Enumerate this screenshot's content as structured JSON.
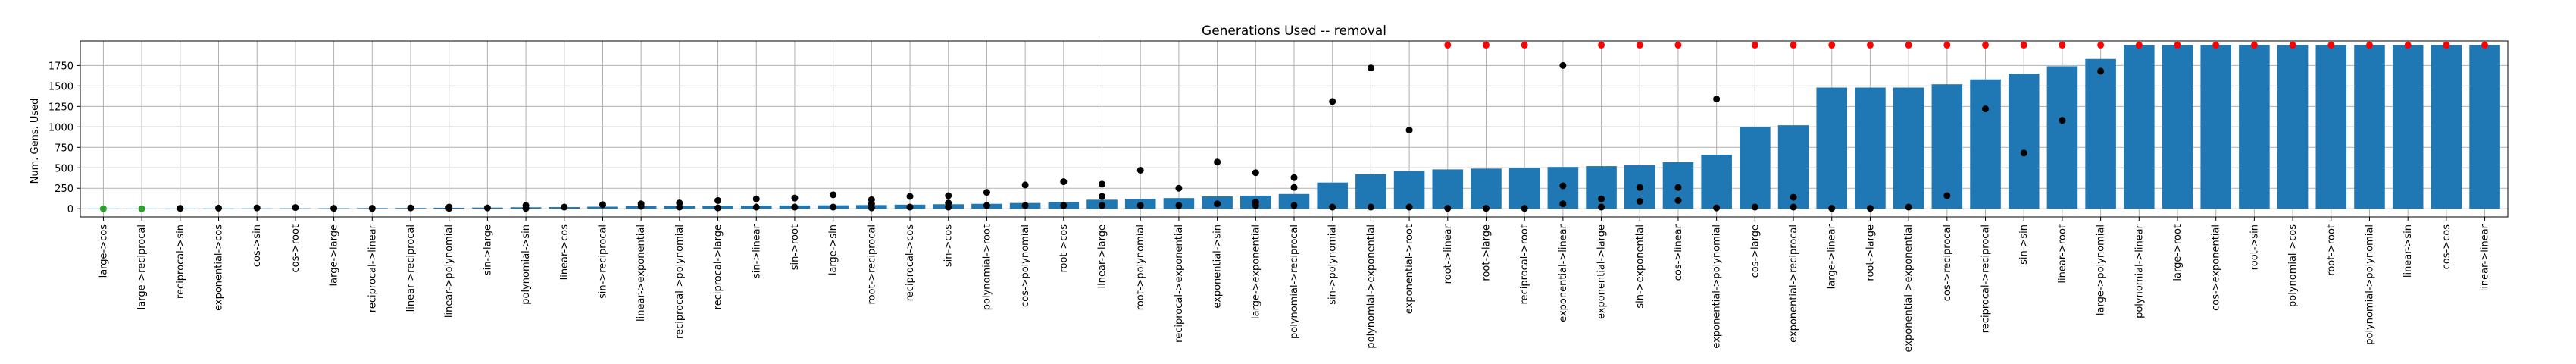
{
  "chart_data": {
    "type": "bar",
    "title": "Generations Used -- removal",
    "xlabel": "",
    "ylabel": "Num. Gens. Used",
    "ylim": [
      -100,
      2050
    ],
    "yticks": [
      0,
      250,
      500,
      750,
      1000,
      1250,
      1500,
      1750
    ],
    "grid": true,
    "colors": {
      "bar": "#1f77b4",
      "marker_black": "#000000",
      "marker_red": "#ff0000",
      "marker_green": "#2ca02c",
      "grid": "#b0b0b0"
    },
    "categories": [
      "large->cos",
      "large->reciprocal",
      "reciprocal->sin",
      "exponential->cos",
      "cos->sin",
      "cos->root",
      "large->large",
      "reciprocal->linear",
      "linear->reciprocal",
      "linear->polynomial",
      "sin->large",
      "polynomial->sin",
      "linear->cos",
      "sin->reciprocal",
      "linear->exponential",
      "reciprocal->polynomial",
      "reciprocal->large",
      "sin->linear",
      "sin->root",
      "large->sin",
      "root->reciprocal",
      "reciprocal->cos",
      "sin->cos",
      "polynomial->root",
      "cos->polynomial",
      "root->cos",
      "linear->large",
      "root->polynomial",
      "reciprocal->exponential",
      "exponential->sin",
      "large->exponential",
      "polynomial->reciprocal",
      "sin->polynomial",
      "polynomial->exponential",
      "exponential->root",
      "root->linear",
      "root->large",
      "reciprocal->root",
      "exponential->linear",
      "exponential->large",
      "sin->exponential",
      "cos->linear",
      "exponential->polynomial",
      "cos->large",
      "exponential->reciprocal",
      "large->linear",
      "root->large",
      "exponential->exponential",
      "cos->reciprocal",
      "reciprocal->reciprocal",
      "sin->sin",
      "linear->root",
      "large->polynomial",
      "polynomial->linear",
      "large->root",
      "cos->exponential",
      "root->sin",
      "polynomial->cos",
      "root->root",
      "polynomial->polynomial",
      "linear->sin",
      "cos->cos",
      "linear->linear"
    ],
    "values": [
      0,
      0,
      2,
      3,
      4,
      5,
      6,
      8,
      9,
      12,
      14,
      18,
      20,
      25,
      30,
      32,
      35,
      38,
      40,
      42,
      45,
      50,
      55,
      60,
      70,
      80,
      110,
      120,
      130,
      150,
      160,
      180,
      320,
      420,
      460,
      480,
      490,
      500,
      510,
      520,
      530,
      570,
      660,
      1000,
      1020,
      1480,
      1480,
      1480,
      1520,
      1580,
      1650,
      1740,
      1830,
      2000,
      2000,
      2000,
      2000,
      2000,
      2000,
      2000,
      2000,
      2000,
      2000
    ],
    "markers": [
      {
        "color": "green",
        "y": [
          0,
          0,
          0,
          0,
          0,
          0,
          0,
          0,
          0,
          0,
          0,
          0,
          0,
          50,
          0,
          0,
          0,
          0,
          0,
          0,
          0,
          0,
          0,
          0,
          0,
          0,
          0,
          0,
          0,
          0,
          0,
          0,
          0,
          0,
          0,
          0,
          0,
          0,
          0,
          0,
          0,
          0,
          0,
          0,
          0,
          0,
          0,
          0,
          0,
          0,
          0,
          0,
          0,
          0,
          0,
          0,
          0,
          0,
          0,
          0,
          0,
          0,
          0
        ],
        "only": [
          0,
          1,
          13
        ]
      },
      {
        "color": "black",
        "points": [
          [
            2,
            5
          ],
          [
            3,
            8
          ],
          [
            4,
            10
          ],
          [
            5,
            15
          ],
          [
            6,
            5
          ],
          [
            7,
            5
          ],
          [
            8,
            10
          ],
          [
            9,
            20
          ],
          [
            9,
            5
          ],
          [
            10,
            10
          ],
          [
            11,
            40
          ],
          [
            11,
            5
          ],
          [
            12,
            20
          ],
          [
            13,
            50
          ],
          [
            14,
            30
          ],
          [
            14,
            60
          ],
          [
            15,
            20
          ],
          [
            15,
            70
          ],
          [
            16,
            100
          ],
          [
            16,
            10
          ],
          [
            17,
            120
          ],
          [
            17,
            20
          ],
          [
            18,
            130
          ],
          [
            18,
            20
          ],
          [
            19,
            170
          ],
          [
            19,
            20
          ],
          [
            20,
            110
          ],
          [
            20,
            10
          ],
          [
            20,
            60
          ],
          [
            21,
            150
          ],
          [
            21,
            20
          ],
          [
            22,
            160
          ],
          [
            22,
            70
          ],
          [
            22,
            20
          ],
          [
            23,
            200
          ],
          [
            23,
            40
          ],
          [
            24,
            290
          ],
          [
            24,
            40
          ],
          [
            25,
            330
          ],
          [
            25,
            40
          ],
          [
            26,
            300
          ],
          [
            26,
            150
          ],
          [
            26,
            40
          ],
          [
            27,
            470
          ],
          [
            27,
            40
          ],
          [
            28,
            250
          ],
          [
            28,
            40
          ],
          [
            29,
            570
          ],
          [
            29,
            60
          ],
          [
            30,
            440
          ],
          [
            30,
            80
          ],
          [
            30,
            40
          ],
          [
            31,
            380
          ],
          [
            31,
            260
          ],
          [
            31,
            40
          ],
          [
            32,
            1310
          ],
          [
            32,
            20
          ],
          [
            33,
            1720
          ],
          [
            33,
            20
          ],
          [
            34,
            960
          ],
          [
            34,
            20
          ],
          [
            35,
            5
          ],
          [
            36,
            5
          ],
          [
            37,
            5
          ],
          [
            38,
            1750
          ],
          [
            38,
            280
          ],
          [
            38,
            60
          ],
          [
            39,
            120
          ],
          [
            39,
            20
          ],
          [
            40,
            260
          ],
          [
            40,
            90
          ],
          [
            41,
            260
          ],
          [
            41,
            100
          ],
          [
            42,
            1340
          ],
          [
            42,
            10
          ],
          [
            43,
            20
          ],
          [
            44,
            140
          ],
          [
            44,
            20
          ],
          [
            45,
            5
          ],
          [
            46,
            5
          ],
          [
            47,
            20
          ],
          [
            48,
            160
          ],
          [
            49,
            1220
          ],
          [
            50,
            680
          ],
          [
            51,
            1080
          ],
          [
            52,
            1680
          ]
        ]
      },
      {
        "color": "red",
        "points": [
          [
            35,
            2000
          ],
          [
            36,
            2000
          ],
          [
            37,
            2000
          ],
          [
            39,
            2000
          ],
          [
            40,
            2000
          ],
          [
            41,
            2000
          ],
          [
            43,
            2000
          ],
          [
            44,
            2000
          ],
          [
            45,
            2000
          ],
          [
            46,
            2000
          ],
          [
            47,
            2000
          ],
          [
            48,
            2000
          ],
          [
            49,
            2000
          ],
          [
            50,
            2000
          ],
          [
            51,
            2000
          ],
          [
            52,
            2000
          ],
          [
            53,
            2000
          ],
          [
            54,
            2000
          ],
          [
            55,
            2000
          ],
          [
            56,
            2000
          ],
          [
            57,
            2000
          ],
          [
            58,
            2000
          ],
          [
            59,
            2000
          ],
          [
            60,
            2000
          ],
          [
            61,
            2000
          ],
          [
            62,
            2000
          ]
        ]
      }
    ],
    "legend": "none"
  }
}
